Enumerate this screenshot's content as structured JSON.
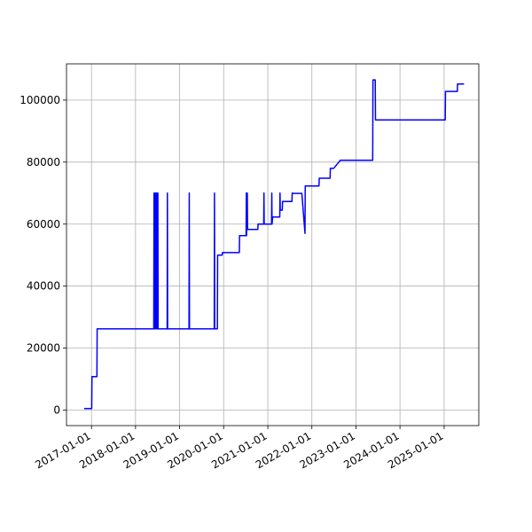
{
  "chart_data": {
    "type": "line",
    "x": [
      "2016-11-01",
      "2017-01-03",
      "2017-01-05",
      "2017-02-15",
      "2017-02-17",
      "2018-06-01",
      "2018-06-03",
      "2018-06-05",
      "2018-06-12",
      "2018-06-14",
      "2018-06-20",
      "2018-06-22",
      "2018-06-28",
      "2018-06-30",
      "2018-07-05",
      "2018-07-07",
      "2018-09-20",
      "2018-09-22",
      "2018-09-24",
      "2019-03-20",
      "2019-03-22",
      "2019-03-24",
      "2019-10-15",
      "2019-10-17",
      "2019-10-19",
      "2019-11-10",
      "2019-11-12",
      "2019-12-20",
      "2019-12-22",
      "2020-05-10",
      "2020-05-12",
      "2020-07-05",
      "2020-07-07",
      "2020-07-09",
      "2020-07-15",
      "2020-07-17",
      "2020-10-10",
      "2020-10-12",
      "2020-11-28",
      "2020-11-30",
      "2020-12-02",
      "2021-02-01",
      "2021-02-03",
      "2021-02-05",
      "2021-02-10",
      "2021-04-10",
      "2021-04-12",
      "2021-04-14",
      "2021-05-01",
      "2021-05-03",
      "2021-07-20",
      "2021-07-22",
      "2021-08-01",
      "2021-10-10",
      "2021-11-05",
      "2021-11-07",
      "2022-03-01",
      "2022-03-03",
      "2022-06-01",
      "2022-06-03",
      "2022-07-01",
      "2022-08-25",
      "2023-05-20",
      "2023-05-22",
      "2023-06-10",
      "2023-06-12",
      "2025-01-10",
      "2025-01-12",
      "2025-04-20",
      "2025-04-22",
      "2025-06-15"
    ],
    "values": [
      500,
      500,
      10800,
      10800,
      26200,
      26200,
      70000,
      26200,
      70000,
      26200,
      70000,
      26200,
      70000,
      26200,
      70000,
      26200,
      26200,
      70000,
      26200,
      26200,
      70000,
      26200,
      26200,
      70000,
      26200,
      26200,
      50000,
      50000,
      50800,
      50800,
      56300,
      56300,
      70000,
      56300,
      70000,
      58300,
      58300,
      60000,
      60000,
      70000,
      60000,
      60000,
      70000,
      60000,
      62300,
      62300,
      70000,
      64500,
      64500,
      67300,
      67300,
      70000,
      69900,
      69900,
      57000,
      72300,
      72300,
      74800,
      74800,
      78000,
      78000,
      80600,
      80600,
      106500,
      106500,
      93600,
      93600,
      102800,
      102800,
      105200,
      105200
    ],
    "color": "#0000ff",
    "xlim": [
      "2016-06-08",
      "2025-10-15"
    ],
    "xticks": [
      "2017-01-01",
      "2018-01-01",
      "2019-01-01",
      "2020-01-01",
      "2021-01-01",
      "2022-01-01",
      "2023-01-01",
      "2024-01-01",
      "2025-01-01"
    ],
    "ylim": [
      -5000,
      111700
    ],
    "yticks": [
      0,
      20000,
      40000,
      60000,
      80000,
      100000
    ],
    "grid": true
  }
}
